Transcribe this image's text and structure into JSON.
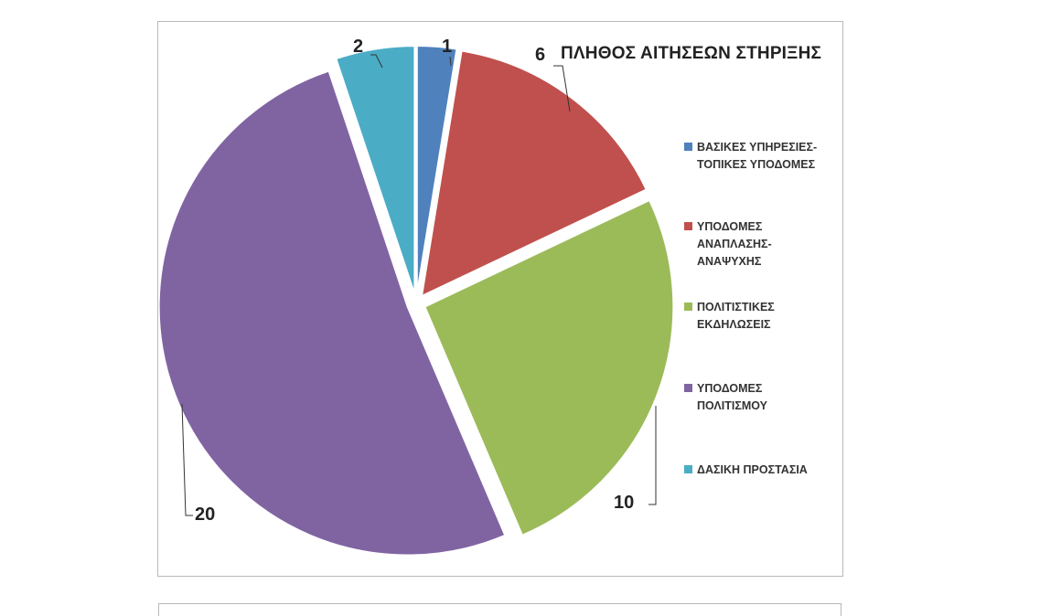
{
  "chart_data": {
    "type": "pie",
    "title": "ΠΛΗΘΟΣ ΑΙΤΗΣΕΩΝ ΣΤΗΡΙΞΗΣ",
    "exploded": true,
    "legend_position": "right",
    "slices": [
      {
        "label": "ΒΑΣΙΚΕΣ ΥΠΗΡΕΣΙΕΣ-\nΤΟΠΙΚΕΣ ΥΠΟΔΟΜΕΣ",
        "value": 1,
        "color": "#4f81bd"
      },
      {
        "label": "ΥΠΟΔΟΜΕΣ\nΑΝΑΠΛΑΣΗΣ-\nΑΝΑΨΥΧΗΣ",
        "value": 6,
        "color": "#c0504d"
      },
      {
        "label": "ΠΟΛΙΤΙΣΤΙΚΕΣ\nΕΚΔΗΛΩΣΕΙΣ",
        "value": 10,
        "color": "#9bbb59"
      },
      {
        "label": "ΥΠΟΔΟΜΕΣ\nΠΟΛΙΤΙΣΜΟΥ",
        "value": 20,
        "color": "#8064a2"
      },
      {
        "label": "ΔΑΣΙΚΗ ΠΡΟΣΤΑΣΙΑ",
        "value": 2,
        "color": "#4bacc6"
      }
    ]
  }
}
